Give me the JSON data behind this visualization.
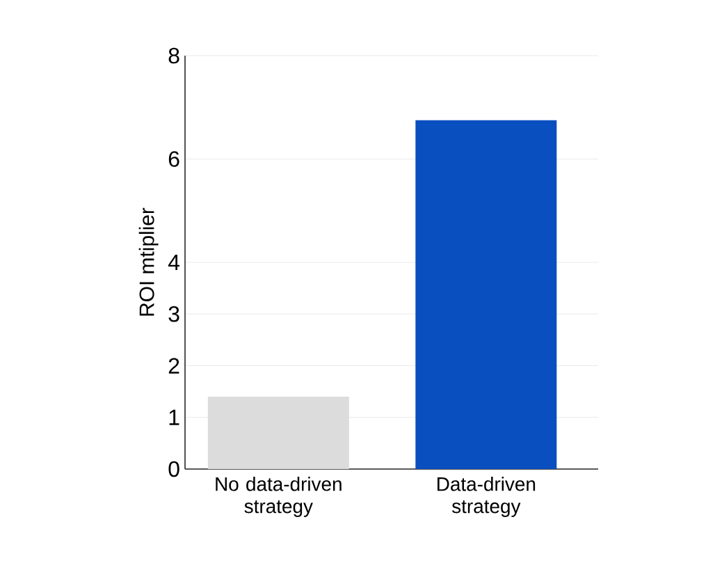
{
  "chart_data": {
    "type": "bar",
    "ylabel": "ROI mtiplier",
    "categories": [
      "No data-driven strategy",
      "Data-driven strategy"
    ],
    "values": [
      1.4,
      6.75
    ],
    "colors": [
      "#dcdcdc",
      "#0a4fbf"
    ],
    "ylim": [
      0,
      8
    ],
    "yticks": [
      0,
      1,
      2,
      3,
      4,
      6,
      8
    ],
    "grid": "y"
  }
}
